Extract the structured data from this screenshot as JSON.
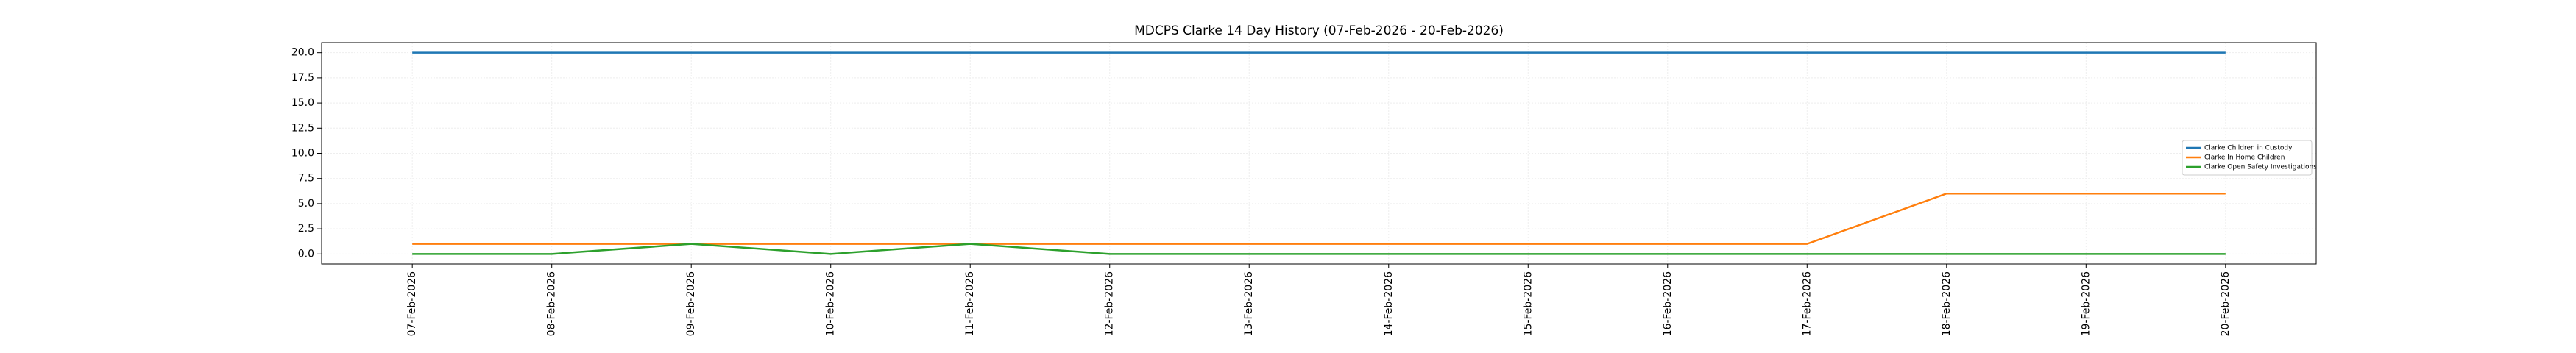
{
  "chart_data": {
    "type": "line",
    "title": "MDCPS Clarke 14 Day History (07-Feb-2026 - 20-Feb-2026)",
    "categories": [
      "07-Feb-2026",
      "08-Feb-2026",
      "09-Feb-2026",
      "10-Feb-2026",
      "11-Feb-2026",
      "12-Feb-2026",
      "13-Feb-2026",
      "14-Feb-2026",
      "15-Feb-2026",
      "16-Feb-2026",
      "17-Feb-2026",
      "18-Feb-2026",
      "19-Feb-2026",
      "20-Feb-2026"
    ],
    "series": [
      {
        "name": "Clarke Children in Custody",
        "color": "#1f77b4",
        "values": [
          20,
          20,
          20,
          20,
          20,
          20,
          20,
          20,
          20,
          20,
          20,
          20,
          20,
          20
        ]
      },
      {
        "name": "Clarke In Home Children",
        "color": "#ff7f0e",
        "values": [
          1,
          1,
          1,
          1,
          1,
          1,
          1,
          1,
          1,
          1,
          1,
          6,
          6,
          6
        ]
      },
      {
        "name": "Clarke Open Safety Investigations",
        "color": "#2ca02c",
        "values": [
          0,
          0,
          1,
          0,
          1,
          0,
          0,
          0,
          0,
          0,
          0,
          0,
          0,
          0
        ]
      }
    ],
    "ylim": [
      -1,
      21
    ],
    "yticks": [
      {
        "value": 0,
        "label": "0.0"
      },
      2.5,
      {
        "value": 5,
        "label": "5.0"
      },
      7.5,
      {
        "value": 10,
        "label": "10.0"
      },
      12.5,
      {
        "value": 15,
        "label": "15.0"
      },
      17.5,
      {
        "value": 20,
        "label": "20.0"
      }
    ],
    "grid": true,
    "legend": "center right"
  }
}
